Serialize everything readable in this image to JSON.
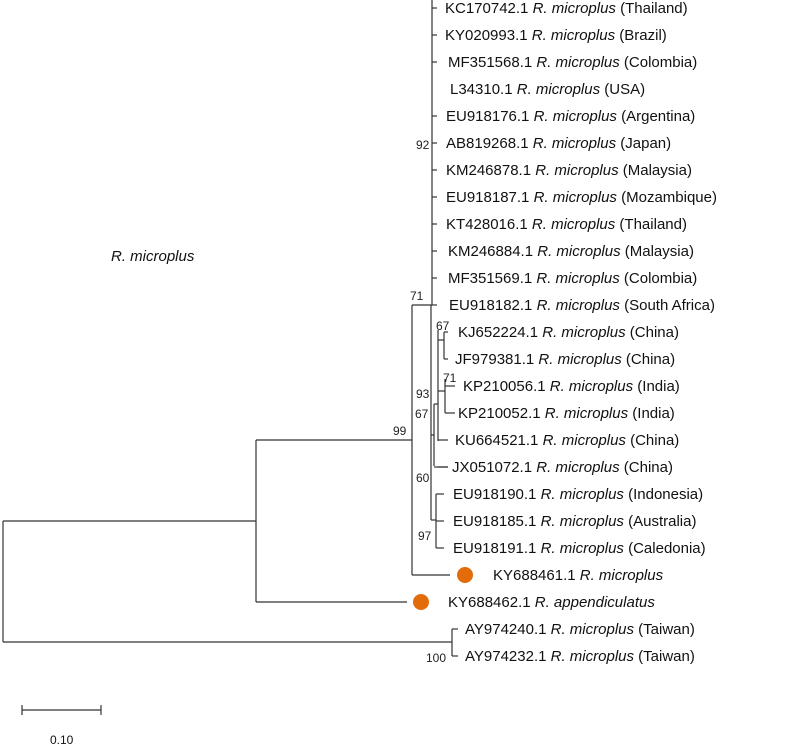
{
  "group_label": "R. microplus",
  "scale_label": "0.10",
  "taxa": [
    {
      "acc": "KC170742.1",
      "species": "R. microplus",
      "loc": "(Thailand)"
    },
    {
      "acc": "KY020993.1",
      "species": "R. microplus",
      "loc": "(Brazil)"
    },
    {
      "acc": "MF351568.1",
      "species": "R. microplus",
      "loc": "(Colombia)"
    },
    {
      "acc": "L34310.1",
      "species": "R. microplus",
      "loc": "(USA)"
    },
    {
      "acc": "EU918176.1",
      "species": "R. microplus",
      "loc": "(Argentina)"
    },
    {
      "acc": "AB819268.1",
      "species": "R. microplus",
      "loc": "(Japan)"
    },
    {
      "acc": "KM246878.1",
      "species": "R. microplus",
      "loc": "(Malaysia)"
    },
    {
      "acc": "EU918187.1",
      "species": "R. microplus",
      "loc": "(Mozambique)"
    },
    {
      "acc": "KT428016.1",
      "species": "R. microplus",
      "loc": "(Thailand)"
    },
    {
      "acc": "KM246884.1",
      "species": "R. microplus",
      "loc": "(Malaysia)"
    },
    {
      "acc": "MF351569.1",
      "species": "R. microplus",
      "loc": "(Colombia)"
    },
    {
      "acc": "EU918182.1",
      "species": "R. microplus",
      "loc": "(South Africa)"
    },
    {
      "acc": "KJ652224.1",
      "species": "R. microplus",
      "loc": "(China)"
    },
    {
      "acc": "JF979381.1",
      "species": "R. microplus",
      "loc": "(China)"
    },
    {
      "acc": "KP210056.1",
      "species": "R. microplus",
      "loc": "(India)"
    },
    {
      "acc": "KP210052.1",
      "species": "R. microplus",
      "loc": "(India)"
    },
    {
      "acc": "KU664521.1",
      "species": "R. microplus",
      "loc": "(China)"
    },
    {
      "acc": "JX051072.1",
      "species": "R. microplus",
      "loc": "(China)"
    },
    {
      "acc": "EU918190.1",
      "species": "R. microplus",
      "loc": "(Indonesia)"
    },
    {
      "acc": "EU918185.1",
      "species": "R. microplus",
      "loc": "(Australia)"
    },
    {
      "acc": "EU918191.1",
      "species": "R. microplus",
      "loc": "(Caledonia)"
    },
    {
      "acc": "KY688461.1",
      "species": "R. microplus",
      "loc": "",
      "marked": true
    },
    {
      "acc": "KY688462.1",
      "species": "R. appendiculatus",
      "loc": "",
      "marked": true
    },
    {
      "acc": "AY974240.1",
      "species": "R. microplus",
      "loc": "(Taiwan)"
    },
    {
      "acc": "AY974232.1",
      "species": "R. microplus",
      "loc": "(Taiwan)"
    }
  ],
  "bootstrap": [
    "92",
    "71",
    "67",
    "71",
    "93",
    "67",
    "99",
    "60",
    "97",
    "100"
  ],
  "colors": {
    "marker": "#e36c0a",
    "line": "#333333"
  }
}
